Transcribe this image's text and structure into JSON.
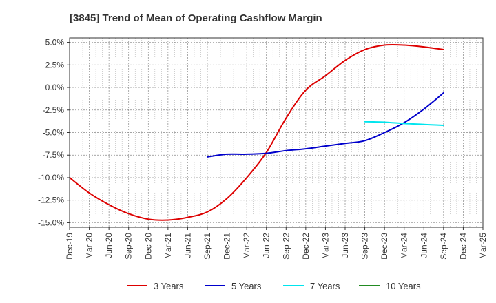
{
  "chart_data": {
    "type": "line",
    "title": "[3845]  Trend of Mean of Operating Cashflow Margin",
    "xlabel": "",
    "ylabel": "",
    "x": [
      "Dec-19",
      "Mar-20",
      "Jun-20",
      "Sep-20",
      "Dec-20",
      "Mar-21",
      "Jun-21",
      "Sep-21",
      "Dec-21",
      "Mar-22",
      "Jun-22",
      "Sep-22",
      "Dec-22",
      "Mar-23",
      "Jun-23",
      "Sep-23",
      "Dec-23",
      "Mar-24",
      "Jun-24",
      "Sep-24",
      "Dec-24",
      "Mar-25"
    ],
    "ylim": [
      -15.5,
      5.5
    ],
    "yticks": [
      5.0,
      2.5,
      0.0,
      -2.5,
      -5.0,
      -7.5,
      -10.0,
      -12.5,
      -15.0
    ],
    "ytick_labels": [
      "5.0%",
      "2.5%",
      "0.0%",
      "-2.5%",
      "-5.0%",
      "-7.5%",
      "-10.0%",
      "-12.5%",
      "-15.0%"
    ],
    "grid": true,
    "legend_position": "bottom",
    "series": [
      {
        "name": "3 Years",
        "color": "#dd0000",
        "values": [
          -10.0,
          -11.7,
          -13.0,
          -14.0,
          -14.6,
          -14.7,
          -14.4,
          -13.8,
          -12.3,
          -10.0,
          -7.2,
          -3.4,
          -0.3,
          1.3,
          3.0,
          4.2,
          4.7,
          4.7,
          4.5,
          4.2,
          null,
          null
        ]
      },
      {
        "name": "5 Years",
        "color": "#0000cc",
        "values": [
          null,
          null,
          null,
          null,
          null,
          null,
          null,
          -7.7,
          -7.4,
          -7.4,
          -7.3,
          -7.0,
          -6.8,
          -6.5,
          -6.2,
          -5.9,
          -5.0,
          -3.9,
          -2.4,
          -0.6,
          null,
          null
        ]
      },
      {
        "name": "7 Years",
        "color": "#00e5ee",
        "values": [
          null,
          null,
          null,
          null,
          null,
          null,
          null,
          null,
          null,
          null,
          null,
          null,
          null,
          null,
          null,
          -3.8,
          -3.85,
          -4.0,
          -4.1,
          -4.2,
          null,
          null
        ]
      },
      {
        "name": "10 Years",
        "color": "#228b22",
        "values": [
          null,
          null,
          null,
          null,
          null,
          null,
          null,
          null,
          null,
          null,
          null,
          null,
          null,
          null,
          null,
          null,
          null,
          null,
          null,
          null,
          null,
          null
        ]
      }
    ]
  }
}
